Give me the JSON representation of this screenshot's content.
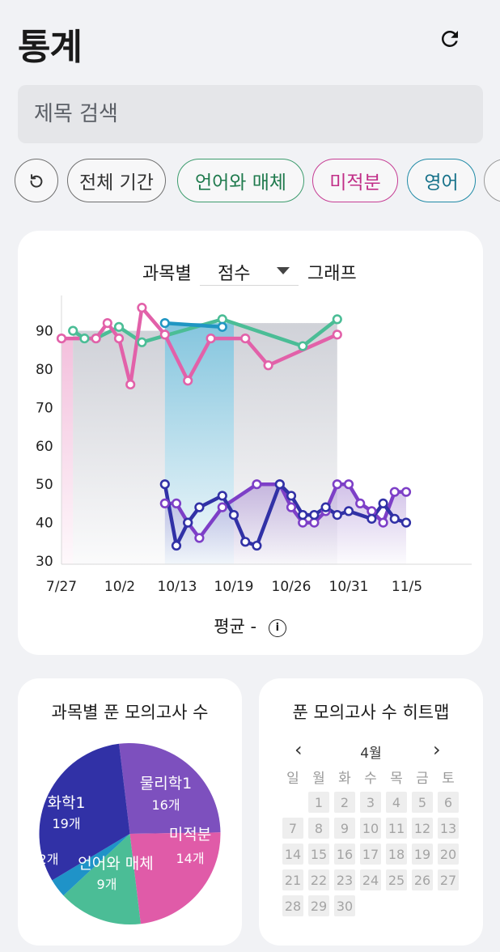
{
  "header": {
    "title": "통계",
    "refresh_icon": "refresh-icon"
  },
  "search": {
    "placeholder": "제목 검색"
  },
  "chips": [
    {
      "label": "",
      "icon": "reset-icon",
      "border": "#6f6f6f",
      "text": "#333333"
    },
    {
      "label": "전체 기간",
      "border": "#6f6f6f",
      "text": "#333333"
    },
    {
      "label": "언어와 매체",
      "border": "#3d9c6e",
      "text": "#1f7a4d"
    },
    {
      "label": "미적분",
      "border": "#c63d94",
      "text": "#c12f88"
    },
    {
      "label": "영어",
      "border": "#1f8aa6",
      "text": "#17728a"
    },
    {
      "label": "",
      "border": "#9a9a9a",
      "text": "#333333"
    }
  ],
  "score_graph": {
    "prefix": "과목별",
    "selected_metric": "점수",
    "suffix": "그래프",
    "average_label": "평균  -",
    "info_icon": "info-icon"
  },
  "chart_data": {
    "type": "line",
    "ylim": [
      30,
      93
    ],
    "yticks": [
      30,
      40,
      50,
      60,
      70,
      80,
      90
    ],
    "x_tick_labels": [
      "7/27",
      "10/2",
      "10/13",
      "10/19",
      "10/26",
      "10/31",
      "11/5"
    ],
    "series": [
      {
        "color": "#4bbd96",
        "values": [
          [
            1,
            90
          ],
          [
            2,
            88
          ],
          [
            3,
            88
          ],
          [
            5,
            91
          ],
          [
            7,
            87
          ],
          [
            14,
            93
          ],
          [
            21,
            86
          ],
          [
            24,
            93
          ]
        ]
      },
      {
        "color": "#e261a9",
        "values": [
          [
            0,
            88
          ],
          [
            3,
            88
          ],
          [
            4,
            92
          ],
          [
            5,
            88
          ],
          [
            6,
            76
          ],
          [
            7,
            96
          ],
          [
            9,
            89
          ],
          [
            11,
            77
          ],
          [
            13,
            88
          ],
          [
            16,
            88
          ],
          [
            18,
            81
          ],
          [
            24,
            89
          ]
        ]
      },
      {
        "color": "#2096c3",
        "values": [
          [
            9,
            92
          ],
          [
            14,
            91
          ]
        ]
      },
      {
        "color": "#7d3fc7",
        "values": [
          [
            9,
            45
          ],
          [
            10,
            45
          ],
          [
            11,
            40
          ],
          [
            12,
            36
          ],
          [
            14,
            44
          ],
          [
            17,
            50
          ],
          [
            19,
            50
          ],
          [
            20,
            44
          ],
          [
            21,
            40
          ],
          [
            22,
            40
          ],
          [
            23,
            43
          ],
          [
            24,
            50
          ],
          [
            25,
            50
          ],
          [
            26,
            45
          ],
          [
            27,
            43
          ],
          [
            28,
            40
          ],
          [
            29,
            48
          ],
          [
            30,
            48
          ]
        ]
      },
      {
        "color": "#3131a6",
        "values": [
          [
            9,
            50
          ],
          [
            10,
            34
          ],
          [
            11,
            40
          ],
          [
            12,
            44
          ],
          [
            14,
            47
          ],
          [
            15,
            42
          ],
          [
            16,
            35
          ],
          [
            17,
            34
          ],
          [
            19,
            50
          ],
          [
            20,
            47
          ],
          [
            21,
            42
          ],
          [
            22,
            42
          ],
          [
            23,
            44
          ],
          [
            24,
            42
          ],
          [
            25,
            43
          ],
          [
            27,
            41
          ],
          [
            28,
            45
          ],
          [
            29,
            41
          ],
          [
            30,
            40
          ]
        ]
      }
    ]
  },
  "pie_card": {
    "title": "과목별 푼 모의고사 수",
    "chart_data": {
      "type": "pie",
      "slices": [
        {
          "label": "물리학1",
          "value": 16,
          "count_label": "16개",
          "color": "#7d50be"
        },
        {
          "label": "미적분",
          "value": 14,
          "count_label": "14개",
          "color": "#e05ba8"
        },
        {
          "label": "언어와 매체",
          "value": 9,
          "count_label": "9개",
          "color": "#4bbd96"
        },
        {
          "label": "",
          "value": 2,
          "count_label": "2개",
          "color": "#1f93c8"
        },
        {
          "label": "화학1",
          "value": 19,
          "count_label": "19개",
          "color": "#3131a6"
        }
      ]
    }
  },
  "heatmap_card": {
    "title": "푼 모의고사 수 히트맵",
    "month": "4월",
    "prev_icon": "chevron-left-icon",
    "next_icon": "chevron-right-icon",
    "weekdays": [
      "일",
      "월",
      "화",
      "수",
      "목",
      "금",
      "토"
    ],
    "first_weekday_index": 1,
    "days": [
      "1",
      "2",
      "3",
      "4",
      "5",
      "6",
      "7",
      "8",
      "9",
      "10",
      "11",
      "12",
      "13",
      "14",
      "15",
      "16",
      "17",
      "18",
      "19",
      "20",
      "21",
      "22",
      "23",
      "24",
      "25",
      "26",
      "27",
      "28",
      "29",
      "30"
    ]
  }
}
